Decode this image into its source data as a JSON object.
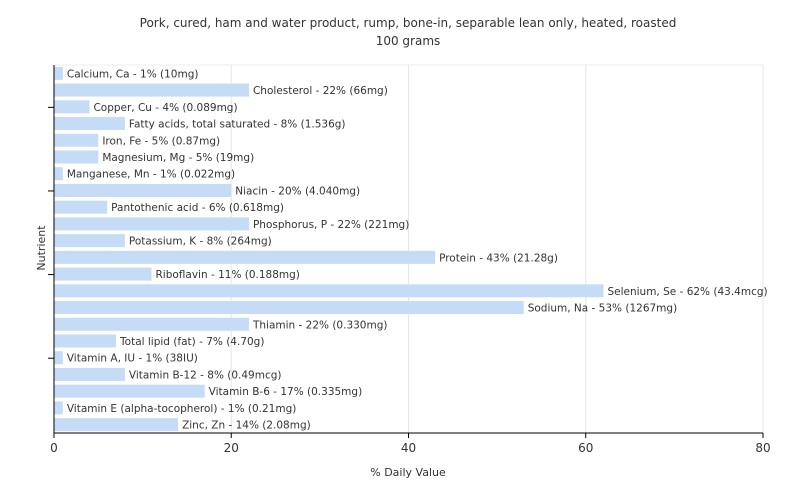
{
  "chart_data": {
    "type": "bar",
    "orientation": "horizontal",
    "title": "Pork, cured, ham and water product, rump, bone-in, separable lean only, heated, roasted",
    "subtitle": "100 grams",
    "xlabel": "% Daily Value",
    "ylabel": "Nutrient",
    "xlim": [
      0,
      80
    ],
    "xticks": [
      0,
      20,
      40,
      60,
      80
    ],
    "grid": true,
    "bar_color": "#c5dbf6",
    "categories": [
      "Calcium, Ca",
      "Cholesterol",
      "Copper, Cu",
      "Fatty acids, total saturated",
      "Iron, Fe",
      "Magnesium, Mg",
      "Manganese, Mn",
      "Niacin",
      "Pantothenic acid",
      "Phosphorus, P",
      "Potassium, K",
      "Protein",
      "Riboflavin",
      "Selenium, Se",
      "Sodium, Na",
      "Thiamin",
      "Total lipid (fat)",
      "Vitamin A, IU",
      "Vitamin B-12",
      "Vitamin B-6",
      "Vitamin E (alpha-tocopherol)",
      "Zinc, Zn"
    ],
    "values": [
      1,
      22,
      4,
      8,
      5,
      5,
      1,
      20,
      6,
      22,
      8,
      43,
      11,
      62,
      53,
      22,
      7,
      1,
      8,
      17,
      1,
      14
    ],
    "labels": [
      "Calcium, Ca - 1% (10mg)",
      "Cholesterol - 22% (66mg)",
      "Copper, Cu - 4% (0.089mg)",
      "Fatty acids, total saturated - 8% (1.536g)",
      "Iron, Fe - 5% (0.87mg)",
      "Magnesium, Mg - 5% (19mg)",
      "Manganese, Mn - 1% (0.022mg)",
      "Niacin - 20% (4.040mg)",
      "Pantothenic acid - 6% (0.618mg)",
      "Phosphorus, P - 22% (221mg)",
      "Potassium, K - 8% (264mg)",
      "Protein - 43% (21.28g)",
      "Riboflavin - 11% (0.188mg)",
      "Selenium, Se - 62% (43.4mcg)",
      "Sodium, Na - 53% (1267mg)",
      "Thiamin - 22% (0.330mg)",
      "Total lipid (fat) - 7% (4.70g)",
      "Vitamin A, IU - 1% (38IU)",
      "Vitamin B-12 - 8% (0.49mcg)",
      "Vitamin B-6 - 17% (0.335mg)",
      "Vitamin E (alpha-tocopherol) - 1% (0.21mg)",
      "Zinc, Zn - 14% (2.08mg)"
    ]
  }
}
